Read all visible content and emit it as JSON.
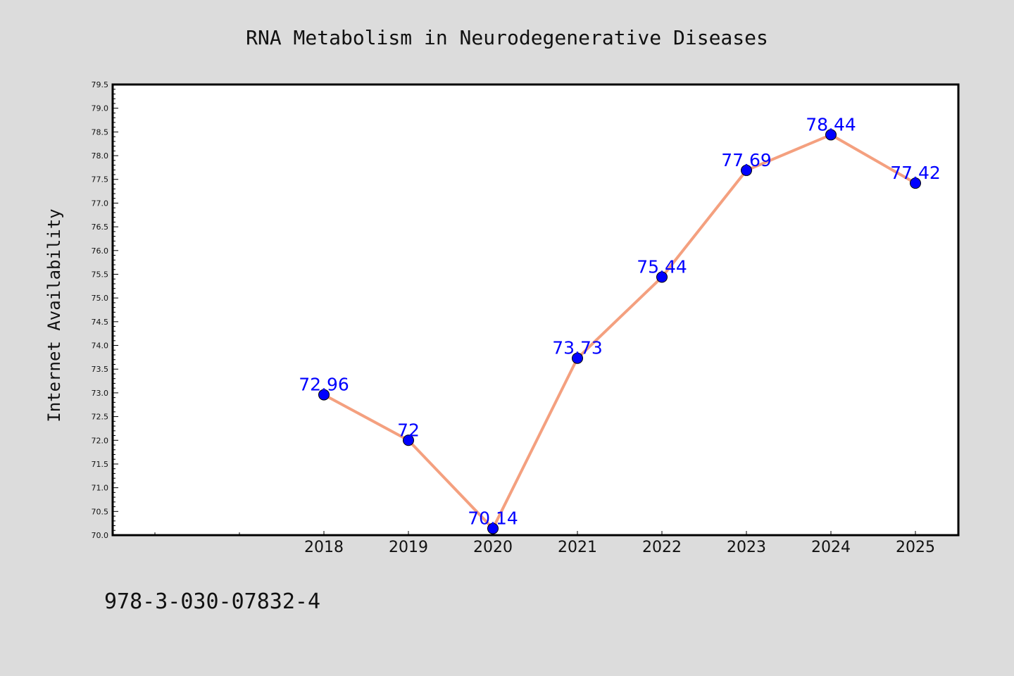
{
  "colors": {
    "background": "#dcdcdc",
    "plot_area": "#ffffff",
    "line": "#f4a07f",
    "marker": "#0000ff",
    "data_label": "#0000ff"
  },
  "footer": {
    "isbn": "978-3-030-07832-4"
  },
  "chart_data": {
    "type": "line",
    "title": "RNA Metabolism in Neurodegenerative Diseases",
    "xlabel": "",
    "ylabel": "Internet Availability",
    "categories": [
      "2018",
      "2019",
      "2020",
      "2021",
      "2022",
      "2023",
      "2024",
      "2025"
    ],
    "series": [
      {
        "values": [
          72.96,
          72,
          70.14,
          73.73,
          75.44,
          77.69,
          78.44,
          77.42
        ]
      }
    ],
    "data_labels": [
      "72.96",
      "72",
      "70.14",
      "73.73",
      "75.44",
      "77.69",
      "78.44",
      "77.42"
    ],
    "ylim": [
      70.0,
      79.5
    ],
    "yticks": [
      "70.0",
      "70.5",
      "71.0",
      "71.5",
      "72.0",
      "72.5",
      "73.0",
      "73.5",
      "74.0",
      "74.5",
      "75.0",
      "75.5",
      "76.0",
      "76.5",
      "77.0",
      "77.5",
      "78.0",
      "78.5",
      "79.0",
      "79.5"
    ],
    "grid": false,
    "legend": "none"
  }
}
